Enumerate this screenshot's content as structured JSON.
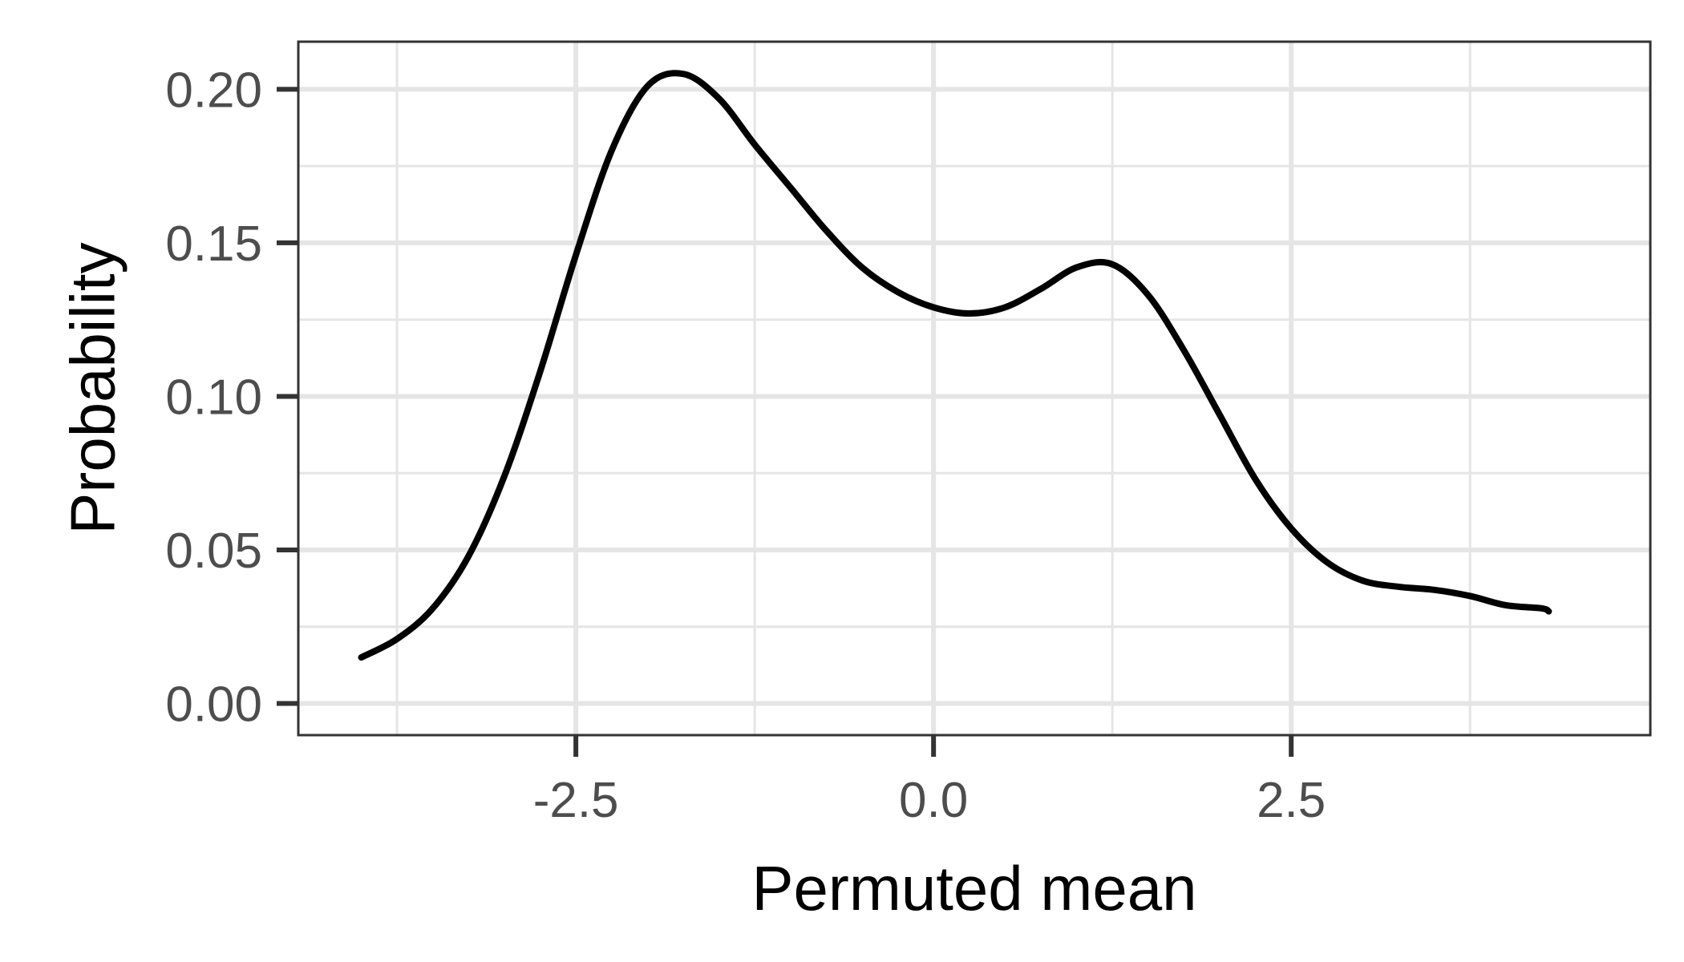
{
  "chart_data": {
    "type": "line",
    "title": "",
    "xlabel": "Permuted mean",
    "ylabel": "Probability",
    "xlim": [
      -4.44,
      5.01
    ],
    "ylim": [
      -0.0103,
      0.2155
    ],
    "x_ticks": [
      -2.5,
      0.0,
      2.5
    ],
    "x_tick_labels": [
      "-2.5",
      "0.0",
      "2.5"
    ],
    "y_ticks": [
      0.0,
      0.05,
      0.1,
      0.15,
      0.2
    ],
    "y_tick_labels": [
      "0.00",
      "0.05",
      "0.10",
      "0.15",
      "0.20"
    ],
    "x_minor_ticks": [
      -3.75,
      -1.25,
      1.25,
      3.75
    ],
    "y_minor_ticks": [
      0.025,
      0.075,
      0.125,
      0.175
    ],
    "grid": true,
    "legend": "none",
    "colors": {
      "line": "#000000",
      "grid": "#e5e5e5",
      "panel_border": "#333333",
      "tick_text": "#4d4d4d",
      "axis_title": "#000000"
    },
    "series": [
      {
        "x": [
          -4.0,
          -3.75,
          -3.5,
          -3.25,
          -3.0,
          -2.75,
          -2.5,
          -2.25,
          -2.0,
          -1.75,
          -1.5,
          -1.25,
          -1.0,
          -0.75,
          -0.5,
          -0.25,
          0.0,
          0.25,
          0.5,
          0.75,
          1.0,
          1.25,
          1.5,
          1.75,
          2.0,
          2.25,
          2.5,
          2.75,
          3.0,
          3.25,
          3.5,
          3.75,
          4.0,
          4.25,
          4.3
        ],
        "y": [
          0.015,
          0.021,
          0.031,
          0.048,
          0.074,
          0.108,
          0.146,
          0.18,
          0.201,
          0.205,
          0.197,
          0.182,
          0.168,
          0.154,
          0.142,
          0.134,
          0.129,
          0.127,
          0.129,
          0.135,
          0.142,
          0.143,
          0.133,
          0.115,
          0.094,
          0.073,
          0.057,
          0.046,
          0.04,
          0.038,
          0.037,
          0.035,
          0.032,
          0.031,
          0.03
        ]
      }
    ]
  }
}
